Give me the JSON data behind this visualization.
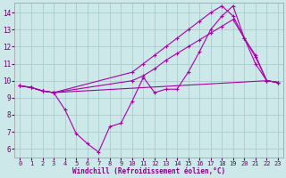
{
  "xlabel": "Windchill (Refroidissement éolien,°C)",
  "bg_color": "#cce8e8",
  "grid_color": "#aacccc",
  "line_color": "#aa00aa",
  "ylim": [
    5.5,
    14.6
  ],
  "xlim": [
    -0.5,
    23.5
  ],
  "xticks": [
    0,
    1,
    2,
    3,
    4,
    5,
    6,
    7,
    8,
    9,
    10,
    11,
    12,
    13,
    14,
    15,
    16,
    17,
    18,
    19,
    20,
    21,
    22,
    23
  ],
  "yticks": [
    6,
    7,
    8,
    9,
    10,
    11,
    12,
    13,
    14
  ],
  "series": [
    {
      "x": [
        0,
        1,
        2,
        3,
        22,
        23
      ],
      "y": [
        9.7,
        9.6,
        9.4,
        9.3,
        10.0,
        9.9
      ]
    },
    {
      "x": [
        0,
        1,
        2,
        3,
        4,
        5,
        6,
        7,
        8,
        9,
        10,
        11,
        12,
        13,
        14,
        15,
        16,
        17,
        18,
        19,
        20,
        21,
        22,
        23
      ],
      "y": [
        9.7,
        9.6,
        9.4,
        9.3,
        8.3,
        6.9,
        6.3,
        5.8,
        7.3,
        7.5,
        8.8,
        10.2,
        9.3,
        9.5,
        9.5,
        10.5,
        11.7,
        13.0,
        13.8,
        14.4,
        12.5,
        11.4,
        10.0,
        9.9
      ]
    },
    {
      "x": [
        0,
        1,
        2,
        3,
        10,
        11,
        12,
        13,
        14,
        15,
        16,
        17,
        18,
        19,
        20,
        21,
        22,
        23
      ],
      "y": [
        9.7,
        9.6,
        9.4,
        9.3,
        10.5,
        11.0,
        11.5,
        12.0,
        12.5,
        13.0,
        13.5,
        14.0,
        14.4,
        13.8,
        12.5,
        11.0,
        10.0,
        9.9
      ]
    },
    {
      "x": [
        0,
        1,
        2,
        3,
        10,
        11,
        12,
        13,
        14,
        15,
        16,
        17,
        18,
        19,
        20,
        21,
        22,
        23
      ],
      "y": [
        9.7,
        9.6,
        9.4,
        9.3,
        10.0,
        10.3,
        10.7,
        11.2,
        11.6,
        12.0,
        12.4,
        12.8,
        13.2,
        13.6,
        12.5,
        11.5,
        10.0,
        9.9
      ]
    }
  ]
}
